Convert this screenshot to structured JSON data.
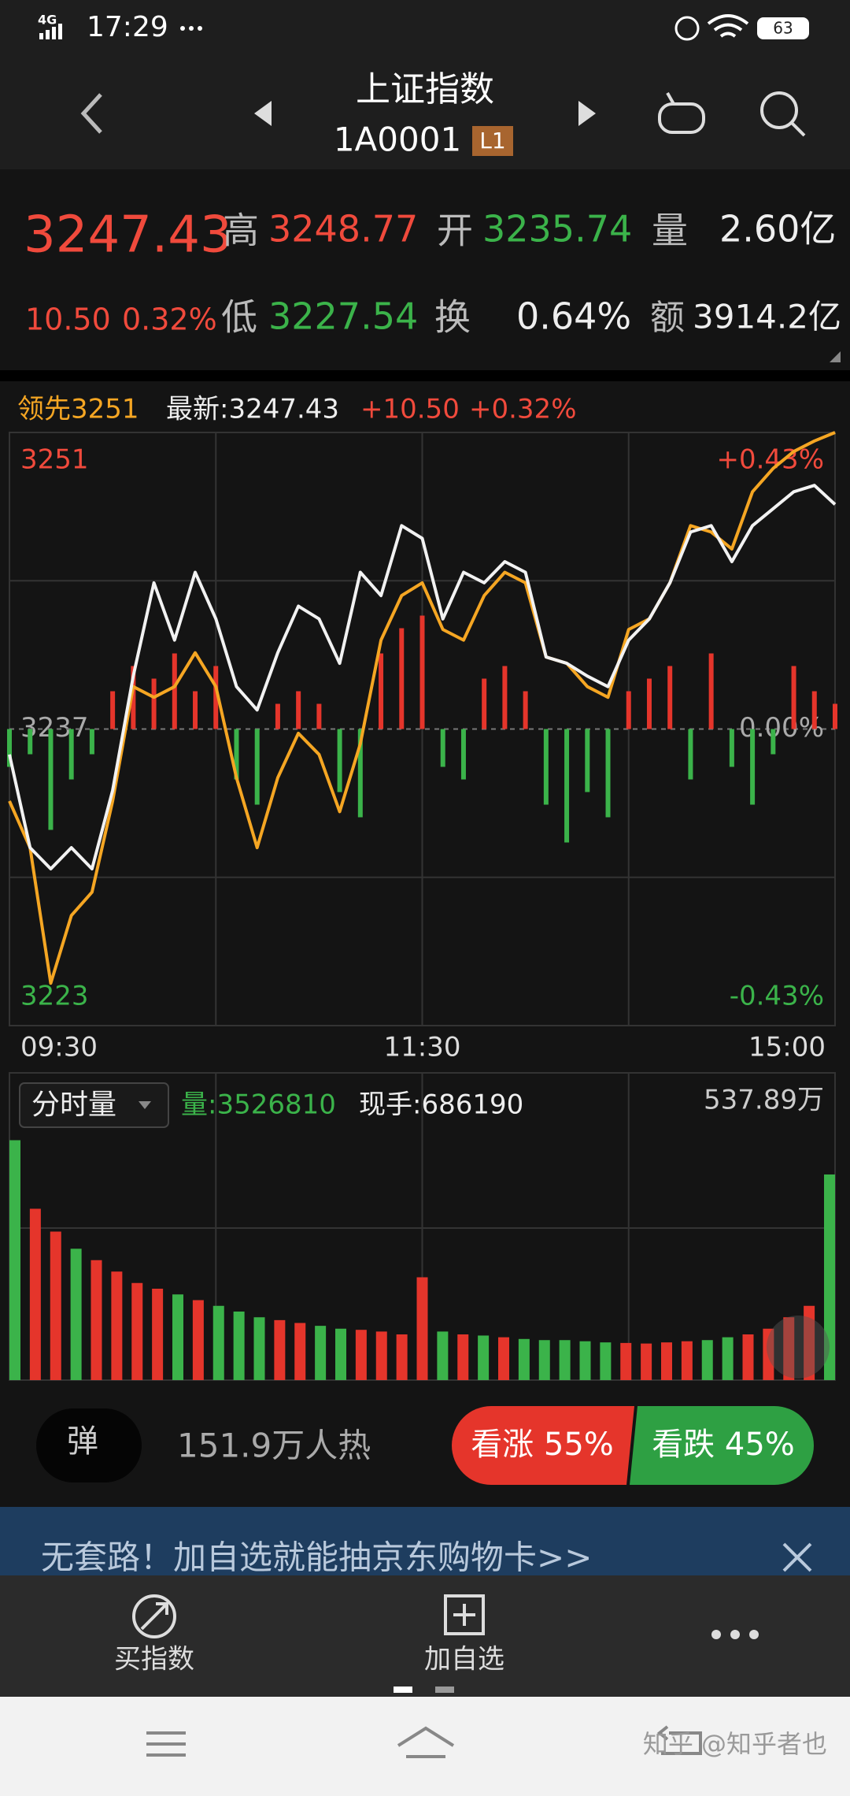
{
  "status_bar": {
    "network": "4G",
    "time": "17:29",
    "battery": "63"
  },
  "header": {
    "title": "上证指数",
    "code": "1A0001",
    "level": "L1"
  },
  "quote": {
    "price": "3247.43",
    "change": "10.50",
    "change_pct": "0.32%",
    "high_label": "高",
    "high": "3248.77",
    "open_label": "开",
    "open": "3235.74",
    "volume_label": "量",
    "volume": "2.60亿",
    "low_label": "低",
    "low": "3227.54",
    "turnover_label": "换",
    "turnover": "0.64%",
    "amount_label": "额",
    "amount": "3914.2亿"
  },
  "legend": {
    "lead": "领先3251",
    "latest": "最新:3247.43",
    "change": "+10.50",
    "change_pct": "+0.32%"
  },
  "chart_data": [
    {
      "type": "line",
      "xlim": [
        0,
        240
      ],
      "xticks": [
        {
          "value": 0,
          "label": "09:30"
        },
        {
          "value": 120,
          "label": "11:30"
        },
        {
          "value": 240,
          "label": "15:00"
        }
      ],
      "x": [
        0,
        6,
        12,
        18,
        24,
        30,
        36,
        42,
        48,
        54,
        60,
        66,
        72,
        78,
        84,
        90,
        96,
        102,
        108,
        114,
        120,
        126,
        132,
        138,
        144,
        150,
        156,
        162,
        168,
        174,
        180,
        186,
        192,
        198,
        204,
        210,
        216,
        222,
        228,
        234,
        240
      ],
      "ylim": [
        3223,
        3251
      ],
      "yticks": [
        3223,
        3237,
        3251
      ],
      "y2lim": [
        -0.43,
        0.43
      ],
      "y2ticks": [
        {
          "value": -0.43,
          "label": "-0.43%"
        },
        {
          "value": 0,
          "label": "0.00%"
        },
        {
          "value": 0.43,
          "label": "+0.43%"
        }
      ],
      "series": [
        {
          "color": "#f2f2f2",
          "values": [
            3235.8,
            3231.4,
            3230.4,
            3231.4,
            3230.4,
            3234.1,
            3239.5,
            3243.9,
            3241.2,
            3244.4,
            3242.2,
            3239.0,
            3237.9,
            3240.6,
            3242.8,
            3242.2,
            3240.1,
            3244.4,
            3243.3,
            3246.6,
            3246.0,
            3242.2,
            3244.4,
            3243.9,
            3244.9,
            3244.4,
            3240.4,
            3240.1,
            3239.5,
            3239.0,
            3241.2,
            3242.2,
            3243.9,
            3246.3,
            3246.6,
            3244.9,
            3246.6,
            3247.4,
            3248.2,
            3248.5,
            3247.6
          ]
        },
        {
          "color": "#f5a623",
          "values": [
            3233.6,
            3231.4,
            3225.0,
            3228.2,
            3229.3,
            3233.6,
            3239.0,
            3238.5,
            3239.0,
            3240.6,
            3239.0,
            3234.7,
            3231.4,
            3234.7,
            3236.8,
            3235.8,
            3233.1,
            3236.3,
            3241.2,
            3243.3,
            3243.9,
            3241.7,
            3241.2,
            3243.3,
            3244.4,
            3243.9,
            3240.4,
            3240.1,
            3239.0,
            3238.5,
            3241.7,
            3242.2,
            3243.9,
            3246.6,
            3246.3,
            3245.5,
            3248.2,
            3249.3,
            3250.1,
            3250.6,
            3251.0
          ]
        }
      ],
      "diff_lim": [
        -10,
        10
      ],
      "diff_values": [
        -3,
        -2,
        -8,
        -4,
        -2,
        3,
        5,
        4,
        6,
        3,
        5,
        -4,
        -6,
        2,
        3,
        2,
        -5,
        -7,
        6,
        8,
        9,
        -3,
        -4,
        4,
        5,
        3,
        -6,
        -9,
        -5,
        -7,
        3,
        4,
        5,
        -4,
        6,
        -3,
        -6,
        -2,
        5,
        3,
        2
      ],
      "grid": true
    },
    {
      "type": "bar",
      "title": "分时量",
      "volume_label": "量:3526810",
      "hand_label": "现手:686190",
      "xlim": [
        0,
        240
      ],
      "x": [
        0,
        6,
        12,
        18,
        24,
        30,
        36,
        42,
        48,
        54,
        60,
        66,
        72,
        78,
        84,
        90,
        96,
        102,
        108,
        114,
        120,
        126,
        132,
        138,
        144,
        150,
        156,
        162,
        168,
        174,
        180,
        186,
        192,
        198,
        204,
        210,
        216,
        222,
        228,
        234,
        240
      ],
      "values": [
        420,
        300,
        260,
        230,
        210,
        190,
        170,
        160,
        150,
        140,
        130,
        120,
        110,
        105,
        100,
        95,
        90,
        88,
        85,
        80,
        180,
        85,
        80,
        78,
        75,
        72,
        70,
        70,
        68,
        66,
        65,
        64,
        66,
        68,
        70,
        75,
        80,
        90,
        110,
        130,
        360
      ],
      "colors": [
        "#3bb34a",
        "#e5352b",
        "#e5352b",
        "#3bb34a",
        "#e5352b",
        "#e5352b",
        "#e5352b",
        "#e5352b",
        "#3bb34a",
        "#e5352b",
        "#3bb34a",
        "#3bb34a",
        "#3bb34a",
        "#e5352b",
        "#e5352b",
        "#3bb34a",
        "#3bb34a",
        "#e5352b",
        "#e5352b",
        "#e5352b",
        "#e5352b",
        "#3bb34a",
        "#e5352b",
        "#3bb34a",
        "#e5352b",
        "#3bb34a",
        "#3bb34a",
        "#3bb34a",
        "#3bb34a",
        "#3bb34a",
        "#e5352b",
        "#e5352b",
        "#e5352b",
        "#e5352b",
        "#3bb34a",
        "#3bb34a",
        "#e5352b",
        "#e5352b",
        "#e5352b",
        "#e5352b",
        "#3bb34a"
      ],
      "ylim": [
        0,
        537.89
      ],
      "yticks": [
        {
          "value": 537.89,
          "label": "537.89万"
        }
      ]
    }
  ],
  "sentiment": {
    "badge": "弹",
    "heat": "151.9万人热",
    "bull": "看涨 55%",
    "bear": "看跌 45%"
  },
  "banner": {
    "text": "无套路！加自选就能抽京东购物卡>>"
  },
  "toolbar": {
    "buy": "买指数",
    "add": "加自选"
  },
  "watermark": "知乎 @知乎者也"
}
